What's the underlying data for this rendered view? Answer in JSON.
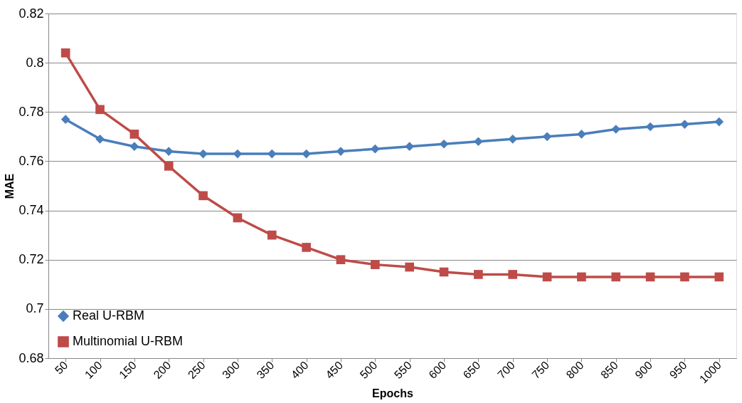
{
  "chart_data": {
    "type": "line",
    "xlabel": "Epochs",
    "ylabel": "MAE",
    "categories": [
      "50",
      "100",
      "150",
      "200",
      "250",
      "300",
      "350",
      "400",
      "450",
      "500",
      "550",
      "600",
      "650",
      "700",
      "750",
      "800",
      "850",
      "900",
      "950",
      "1000"
    ],
    "series": [
      {
        "name": "Real U-RBM",
        "color": "#4a7ebb",
        "marker": "diamond",
        "values": [
          0.777,
          0.769,
          0.766,
          0.764,
          0.763,
          0.763,
          0.763,
          0.763,
          0.764,
          0.765,
          0.766,
          0.767,
          0.768,
          0.769,
          0.77,
          0.771,
          0.773,
          0.774,
          0.775,
          0.776
        ]
      },
      {
        "name": "Multinomial U-RBM",
        "color": "#be4b48",
        "marker": "square",
        "values": [
          0.804,
          0.781,
          0.771,
          0.758,
          0.746,
          0.737,
          0.73,
          0.725,
          0.72,
          0.718,
          0.717,
          0.715,
          0.714,
          0.714,
          0.713,
          0.713,
          0.713,
          0.713,
          0.713,
          0.713
        ]
      }
    ],
    "ylim": [
      0.68,
      0.82
    ],
    "yticks": [
      0.68,
      0.7,
      0.72,
      0.74,
      0.76,
      0.78,
      0.8,
      0.82
    ],
    "grid": "y",
    "legend": "bottom left",
    "line_style": "solid"
  }
}
